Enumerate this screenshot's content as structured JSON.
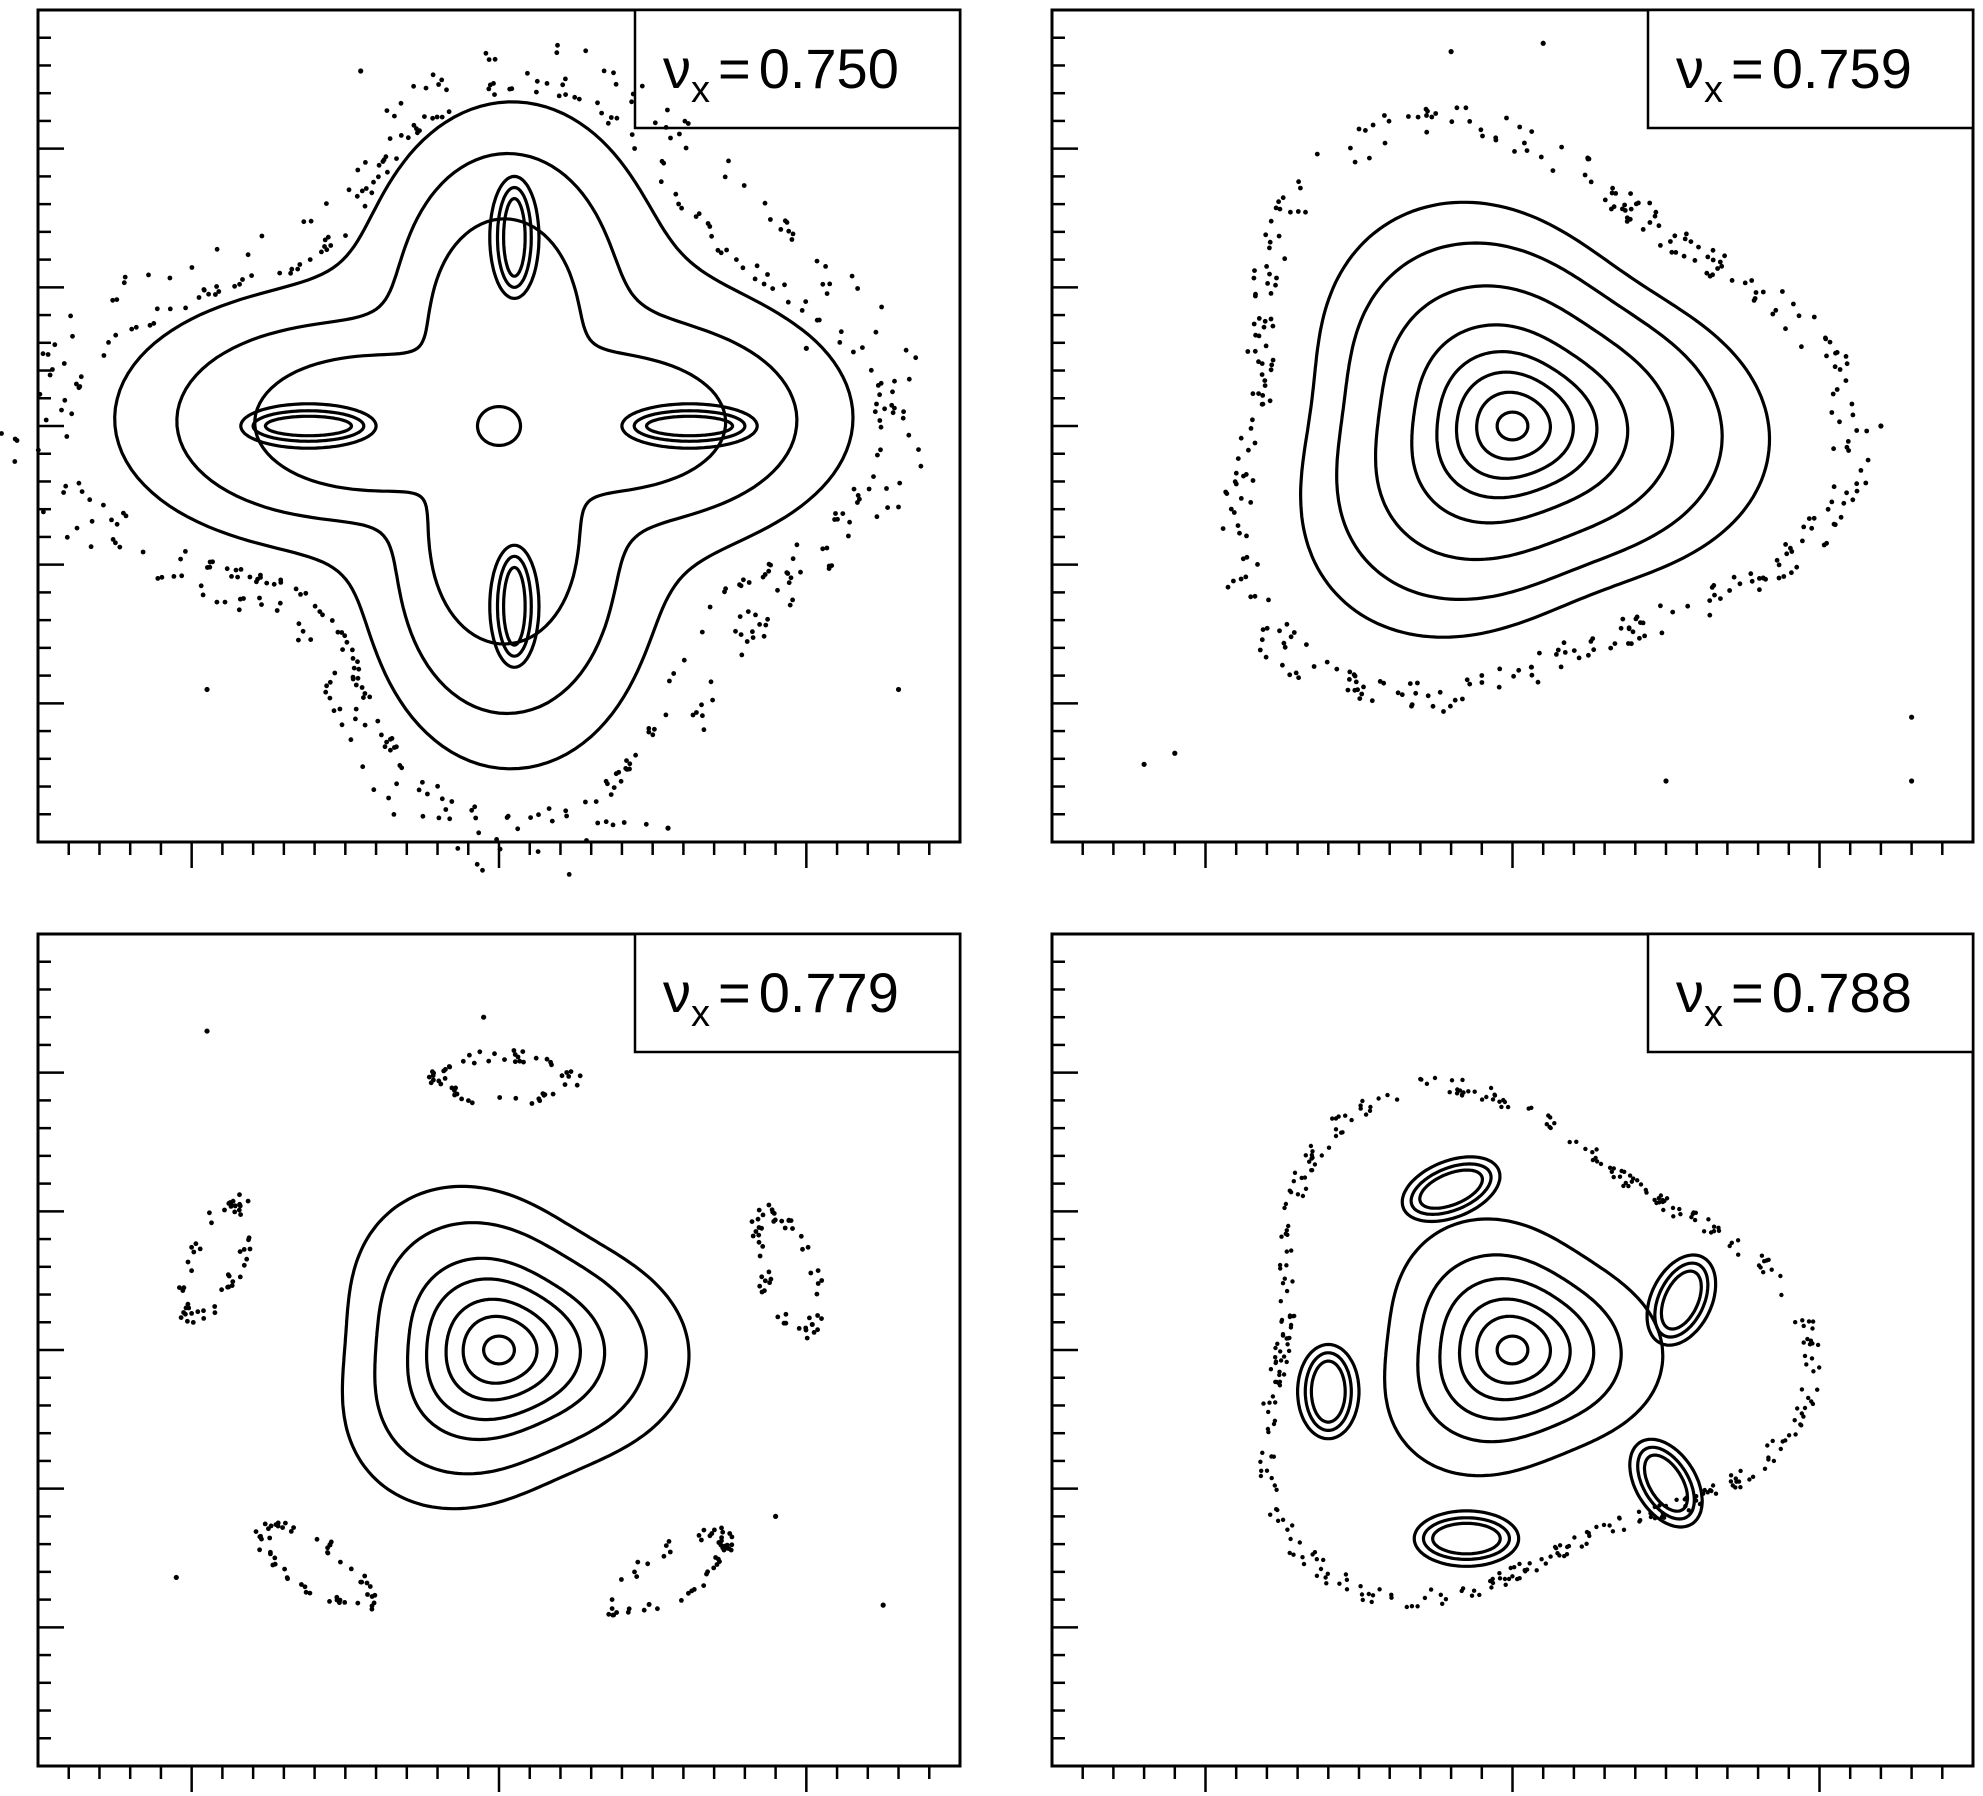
{
  "figure": {
    "panels": [
      {
        "nu_symbol": "ν",
        "nu_subscript": "x",
        "equals": "=",
        "value": "0.750"
      },
      {
        "nu_symbol": "ν",
        "nu_subscript": "x",
        "equals": "=",
        "value": "0.759"
      },
      {
        "nu_symbol": "ν",
        "nu_subscript": "x",
        "equals": "=",
        "value": "0.779"
      },
      {
        "nu_symbol": "ν",
        "nu_subscript": "x",
        "equals": "=",
        "value": "0.788"
      }
    ]
  },
  "chart_data": [
    {
      "type": "scatter",
      "title": "",
      "annotation": "νx = 0.750",
      "xlabel": "",
      "ylabel": "",
      "xlim": [
        -1.5,
        1.5
      ],
      "ylim": [
        -1.5,
        1.5
      ],
      "grid": false,
      "tick_labels_shown": false,
      "structure": "four-island resonance",
      "center": [
        0,
        0
      ],
      "islands": [
        {
          "x": 0.0,
          "y": 0.7
        },
        {
          "x": 0.0,
          "y": -0.7
        },
        {
          "x": -0.6,
          "y": 0.0
        },
        {
          "x": 0.6,
          "y": 0.0
        }
      ],
      "series": [
        {
          "values": "invariant curves + chaotic scatter (4-fold symmetry)"
        }
      ]
    },
    {
      "type": "scatter",
      "title": "",
      "annotation": "νx = 0.759",
      "xlabel": "",
      "ylabel": "",
      "xlim": [
        -1.5,
        1.5
      ],
      "ylim": [
        -1.5,
        1.5
      ],
      "grid": false,
      "tick_labels_shown": false,
      "structure": "nested triangular invariant curves",
      "center": [
        0,
        0
      ],
      "series": [
        {
          "values": "invariant curves + chaotic scatter"
        }
      ]
    },
    {
      "type": "scatter",
      "title": "",
      "annotation": "νx = 0.779",
      "xlabel": "",
      "ylabel": "",
      "xlim": [
        -1.5,
        1.5
      ],
      "ylim": [
        -1.5,
        1.5
      ],
      "grid": false,
      "tick_labels_shown": false,
      "structure": "nested invariant curves with outer scattered chain",
      "center": [
        0,
        0
      ],
      "series": [
        {
          "values": "invariant curves + chaotic scatter"
        }
      ]
    },
    {
      "type": "scatter",
      "title": "",
      "annotation": "νx = 0.788",
      "xlabel": "",
      "ylabel": "",
      "xlim": [
        -1.5,
        1.5
      ],
      "ylim": [
        -1.5,
        1.5
      ],
      "grid": false,
      "tick_labels_shown": false,
      "structure": "five-island resonance",
      "center": [
        0,
        0
      ],
      "islands": [
        {
          "x": -0.2,
          "y": 0.8
        },
        {
          "x": 0.65,
          "y": 0.2
        },
        {
          "x": 0.5,
          "y": -0.6
        },
        {
          "x": -0.2,
          "y": -0.85
        },
        {
          "x": -0.75,
          "y": -0.2
        }
      ],
      "series": [
        {
          "values": "invariant curves + island chains + chaotic scatter"
        }
      ]
    }
  ]
}
